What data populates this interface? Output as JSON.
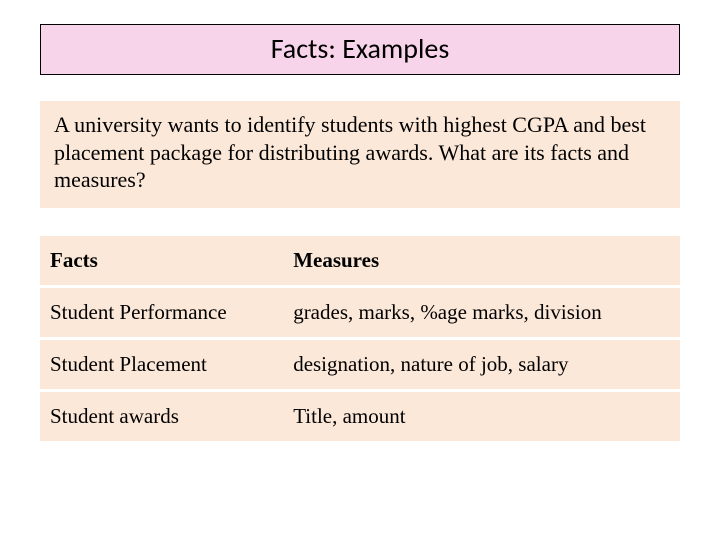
{
  "title": "Facts: Examples",
  "question": "A university wants to identify students with highest CGPA and best placement package for distributing awards. What are its facts and measures?",
  "table": {
    "columns": [
      "Facts",
      "Measures"
    ],
    "rows": [
      [
        "Student Performance",
        "grades, marks, %age marks, division"
      ],
      [
        "Student Placement",
        "designation, nature of job, salary"
      ],
      [
        "Student awards",
        "Title, amount"
      ]
    ],
    "col_widths": [
      "38%",
      "62%"
    ]
  },
  "colors": {
    "title_bg": "#f8d4eb",
    "title_border": "#000000",
    "panel_bg": "#fbe8d9",
    "row_divider": "#ffffff",
    "text": "#000000",
    "slide_bg": "#ffffff"
  },
  "typography": {
    "title_font": "Calibri",
    "title_size_pt": 21,
    "body_font": "Times New Roman",
    "body_size_pt": 16
  },
  "layout": {
    "slide_width": 720,
    "slide_height": 540
  }
}
